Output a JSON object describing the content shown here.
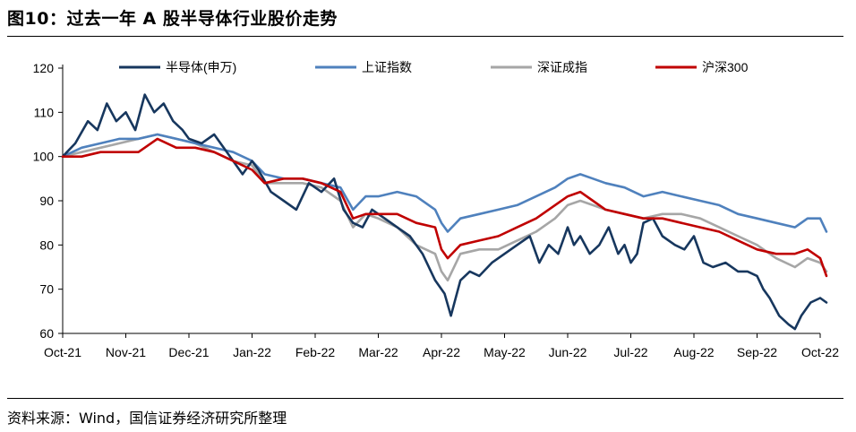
{
  "header": {
    "title": "图10：过去一年 A 股半导体行业股价走势"
  },
  "footer": {
    "source": "资料来源：Wind，国信证券经济研究所整理"
  },
  "chart_data": {
    "type": "line",
    "title": "图10：过去一年 A 股半导体行业股价走势",
    "xlabel": "",
    "ylabel": "",
    "ylim": [
      60,
      120
    ],
    "yticks": [
      60,
      70,
      80,
      90,
      100,
      110,
      120
    ],
    "xlim": [
      0,
      12
    ],
    "xticks": [
      {
        "x": 0,
        "label": "Oct-21"
      },
      {
        "x": 1,
        "label": "Nov-21"
      },
      {
        "x": 2,
        "label": "Dec-21"
      },
      {
        "x": 3,
        "label": "Jan-22"
      },
      {
        "x": 4,
        "label": "Feb-22"
      },
      {
        "x": 5,
        "label": "Mar-22"
      },
      {
        "x": 6,
        "label": "Apr-22"
      },
      {
        "x": 7,
        "label": "May-22"
      },
      {
        "x": 8,
        "label": "Jun-22"
      },
      {
        "x": 9,
        "label": "Jul-22"
      },
      {
        "x": 10,
        "label": "Aug-22"
      },
      {
        "x": 11,
        "label": "Sep-22"
      },
      {
        "x": 12,
        "label": "Oct-22"
      }
    ],
    "grid": false,
    "legend_position": "top",
    "series": [
      {
        "name": "半导体(申万)",
        "color": "#17375e",
        "points": [
          [
            0,
            100
          ],
          [
            0.2,
            103
          ],
          [
            0.4,
            108
          ],
          [
            0.55,
            106
          ],
          [
            0.7,
            112
          ],
          [
            0.85,
            108
          ],
          [
            1,
            110
          ],
          [
            1.15,
            106
          ],
          [
            1.3,
            114
          ],
          [
            1.45,
            110
          ],
          [
            1.6,
            112
          ],
          [
            1.75,
            108
          ],
          [
            1.9,
            106
          ],
          [
            2,
            104
          ],
          [
            2.2,
            103
          ],
          [
            2.4,
            105
          ],
          [
            2.55,
            102
          ],
          [
            2.7,
            99
          ],
          [
            2.85,
            96
          ],
          [
            3,
            99
          ],
          [
            3.1,
            97
          ],
          [
            3.3,
            92
          ],
          [
            3.5,
            90
          ],
          [
            3.7,
            88
          ],
          [
            3.9,
            94
          ],
          [
            4.1,
            92
          ],
          [
            4.3,
            95
          ],
          [
            4.45,
            88
          ],
          [
            4.6,
            85
          ],
          [
            4.75,
            84
          ],
          [
            4.9,
            88
          ],
          [
            5.1,
            86
          ],
          [
            5.3,
            84
          ],
          [
            5.5,
            82
          ],
          [
            5.7,
            78
          ],
          [
            5.9,
            72
          ],
          [
            6.05,
            69
          ],
          [
            6.15,
            64
          ],
          [
            6.3,
            72
          ],
          [
            6.45,
            74
          ],
          [
            6.6,
            73
          ],
          [
            6.8,
            76
          ],
          [
            7,
            78
          ],
          [
            7.2,
            80
          ],
          [
            7.4,
            82
          ],
          [
            7.55,
            76
          ],
          [
            7.7,
            80
          ],
          [
            7.85,
            78
          ],
          [
            8,
            84
          ],
          [
            8.1,
            80
          ],
          [
            8.2,
            82
          ],
          [
            8.35,
            78
          ],
          [
            8.5,
            80
          ],
          [
            8.65,
            84
          ],
          [
            8.8,
            78
          ],
          [
            8.9,
            80
          ],
          [
            9,
            76
          ],
          [
            9.1,
            78
          ],
          [
            9.2,
            85
          ],
          [
            9.35,
            86
          ],
          [
            9.5,
            82
          ],
          [
            9.7,
            80
          ],
          [
            9.85,
            79
          ],
          [
            10,
            82
          ],
          [
            10.15,
            76
          ],
          [
            10.3,
            75
          ],
          [
            10.5,
            76
          ],
          [
            10.7,
            74
          ],
          [
            10.85,
            74
          ],
          [
            11,
            73
          ],
          [
            11.1,
            70
          ],
          [
            11.2,
            68
          ],
          [
            11.35,
            64
          ],
          [
            11.5,
            62
          ],
          [
            11.6,
            61
          ],
          [
            11.7,
            64
          ],
          [
            11.85,
            67
          ],
          [
            12,
            68
          ],
          [
            12.1,
            67
          ]
        ]
      },
      {
        "name": "上证指数",
        "color": "#4f81bd",
        "points": [
          [
            0,
            100
          ],
          [
            0.3,
            102
          ],
          [
            0.6,
            103
          ],
          [
            0.9,
            104
          ],
          [
            1.2,
            104
          ],
          [
            1.5,
            105
          ],
          [
            1.8,
            104
          ],
          [
            2.1,
            103
          ],
          [
            2.4,
            102
          ],
          [
            2.7,
            101
          ],
          [
            3,
            99
          ],
          [
            3.2,
            96
          ],
          [
            3.5,
            95
          ],
          [
            3.8,
            95
          ],
          [
            4.1,
            94
          ],
          [
            4.4,
            93
          ],
          [
            4.6,
            88
          ],
          [
            4.8,
            91
          ],
          [
            5,
            91
          ],
          [
            5.3,
            92
          ],
          [
            5.6,
            91
          ],
          [
            5.9,
            88
          ],
          [
            6,
            85
          ],
          [
            6.1,
            83
          ],
          [
            6.3,
            86
          ],
          [
            6.6,
            87
          ],
          [
            6.9,
            88
          ],
          [
            7.2,
            89
          ],
          [
            7.5,
            91
          ],
          [
            7.8,
            93
          ],
          [
            8,
            95
          ],
          [
            8.2,
            96
          ],
          [
            8.4,
            95
          ],
          [
            8.6,
            94
          ],
          [
            8.9,
            93
          ],
          [
            9.2,
            91
          ],
          [
            9.5,
            92
          ],
          [
            9.8,
            91
          ],
          [
            10.1,
            90
          ],
          [
            10.4,
            89
          ],
          [
            10.7,
            87
          ],
          [
            11,
            86
          ],
          [
            11.3,
            85
          ],
          [
            11.6,
            84
          ],
          [
            11.8,
            86
          ],
          [
            12,
            86
          ],
          [
            12.1,
            83
          ]
        ]
      },
      {
        "name": "深证成指",
        "color": "#a6a6a6",
        "points": [
          [
            0,
            100
          ],
          [
            0.3,
            101
          ],
          [
            0.6,
            102
          ],
          [
            0.9,
            103
          ],
          [
            1.2,
            104
          ],
          [
            1.5,
            105
          ],
          [
            1.8,
            104
          ],
          [
            2.1,
            103
          ],
          [
            2.4,
            101
          ],
          [
            2.7,
            99
          ],
          [
            3,
            98
          ],
          [
            3.2,
            94
          ],
          [
            3.5,
            94
          ],
          [
            3.8,
            94
          ],
          [
            4.1,
            93
          ],
          [
            4.4,
            90
          ],
          [
            4.6,
            84
          ],
          [
            4.8,
            87
          ],
          [
            5,
            86
          ],
          [
            5.3,
            84
          ],
          [
            5.6,
            80
          ],
          [
            5.9,
            78
          ],
          [
            6,
            74
          ],
          [
            6.1,
            72
          ],
          [
            6.3,
            78
          ],
          [
            6.6,
            79
          ],
          [
            6.9,
            79
          ],
          [
            7.2,
            81
          ],
          [
            7.5,
            83
          ],
          [
            7.8,
            86
          ],
          [
            8,
            89
          ],
          [
            8.2,
            90
          ],
          [
            8.4,
            89
          ],
          [
            8.6,
            88
          ],
          [
            8.9,
            87
          ],
          [
            9.2,
            86
          ],
          [
            9.5,
            87
          ],
          [
            9.8,
            87
          ],
          [
            10.1,
            86
          ],
          [
            10.4,
            84
          ],
          [
            10.7,
            82
          ],
          [
            11,
            80
          ],
          [
            11.3,
            77
          ],
          [
            11.6,
            75
          ],
          [
            11.8,
            77
          ],
          [
            12,
            76
          ],
          [
            12.1,
            74
          ]
        ]
      },
      {
        "name": "沪深300",
        "color": "#c00000",
        "points": [
          [
            0,
            100
          ],
          [
            0.3,
            100
          ],
          [
            0.6,
            101
          ],
          [
            0.9,
            101
          ],
          [
            1.2,
            101
          ],
          [
            1.5,
            104
          ],
          [
            1.8,
            102
          ],
          [
            2.1,
            102
          ],
          [
            2.4,
            101
          ],
          [
            2.7,
            99
          ],
          [
            3,
            97
          ],
          [
            3.2,
            94
          ],
          [
            3.5,
            95
          ],
          [
            3.8,
            95
          ],
          [
            4.1,
            94
          ],
          [
            4.4,
            92
          ],
          [
            4.6,
            86
          ],
          [
            4.8,
            87
          ],
          [
            5,
            87
          ],
          [
            5.3,
            87
          ],
          [
            5.6,
            85
          ],
          [
            5.9,
            84
          ],
          [
            6,
            79
          ],
          [
            6.1,
            77
          ],
          [
            6.3,
            80
          ],
          [
            6.6,
            81
          ],
          [
            6.9,
            82
          ],
          [
            7.2,
            84
          ],
          [
            7.5,
            86
          ],
          [
            7.8,
            89
          ],
          [
            8,
            91
          ],
          [
            8.2,
            92
          ],
          [
            8.4,
            90
          ],
          [
            8.6,
            88
          ],
          [
            8.9,
            87
          ],
          [
            9.2,
            86
          ],
          [
            9.5,
            86
          ],
          [
            9.8,
            85
          ],
          [
            10.1,
            84
          ],
          [
            10.4,
            83
          ],
          [
            10.7,
            81
          ],
          [
            11,
            79
          ],
          [
            11.3,
            78
          ],
          [
            11.6,
            78
          ],
          [
            11.8,
            79
          ],
          [
            12,
            77
          ],
          [
            12.1,
            73
          ]
        ]
      }
    ]
  }
}
